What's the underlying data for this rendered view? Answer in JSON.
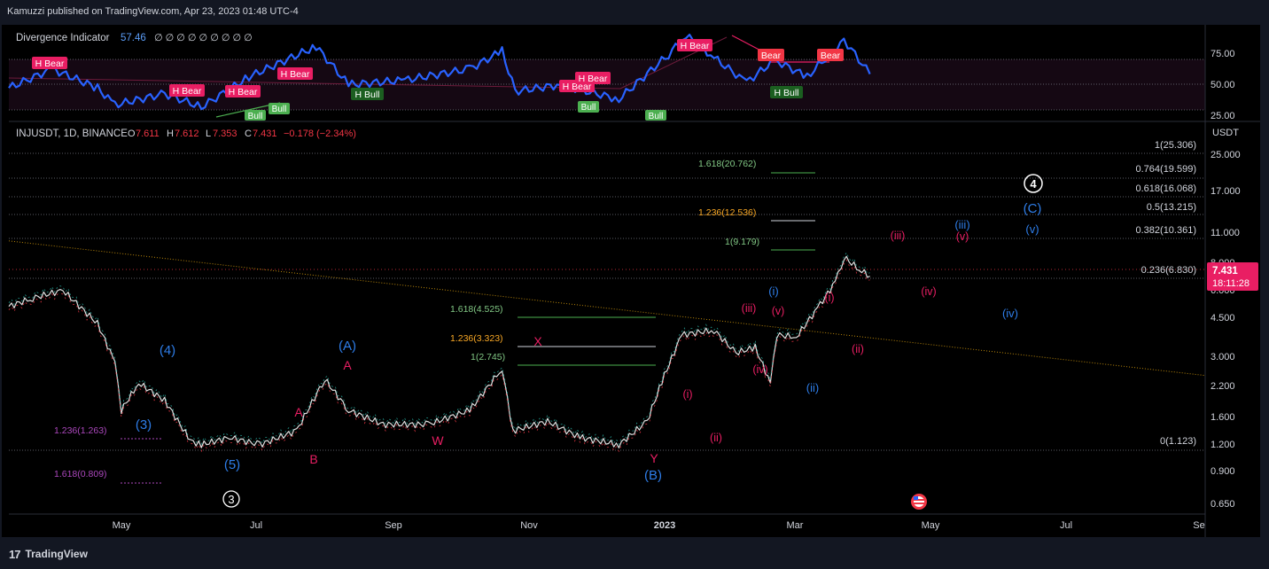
{
  "header": {
    "text": "Kamuzzi published on TradingView.com, Apr 23, 2023 01:48 UTC-4"
  },
  "footer": {
    "logo_glyph": "17",
    "brand": "TradingView"
  },
  "colors": {
    "background": "#000000",
    "page": "#131722",
    "price_line": "#f23645",
    "osc_line": "#2962ff",
    "bear_label": "#e91e63",
    "bull_label": "#2e7d32",
    "wave_blue": "#2962ff",
    "wave_red": "#e91e63",
    "fib_green": "#4caf50",
    "fib_gold": "#f9a825",
    "fib_purple": "#ab47bc"
  },
  "indicator": {
    "name": "Divergence Indicator",
    "value": "57.46",
    "placeholders": "∅ ∅ ∅ ∅ ∅ ∅ ∅ ∅ ∅",
    "axis_ticks": [
      "75.00",
      "50.00",
      "25.00"
    ],
    "labels": [
      "H Bear",
      "H Bear",
      "H Bear",
      "H Bear",
      "H Bear",
      "H Bear",
      "Bear",
      "Bear",
      "H Bull",
      "H Bull",
      "Bull",
      "Bull",
      "Bull",
      "Bull"
    ]
  },
  "symbol": {
    "line": "INJUSDT, 1D, BINANCE",
    "o_label": "O",
    "o": "7.611",
    "h_label": "H",
    "h": "7.612",
    "l_label": "L",
    "l": "7.353",
    "c_label": "C",
    "c": "7.431",
    "chg": "−0.178 (−2.34%)"
  },
  "price_axis": {
    "currency": "USDT",
    "ticks": [
      "25.000",
      "17.000",
      "11.000",
      "8.000",
      "6.000",
      "4.500",
      "3.000",
      "2.200",
      "1.600",
      "1.200",
      "0.900",
      "0.650"
    ],
    "last_price": "7.431",
    "countdown": "18:11:28"
  },
  "time_axis": {
    "ticks": [
      "May",
      "Jul",
      "Sep",
      "Nov",
      "2023",
      "Mar",
      "May",
      "Jul",
      "Se"
    ]
  },
  "fib_right": [
    "1(25.306)",
    "0.764(19.599)",
    "0.618(16.068)",
    "0.5(13.215)",
    "0.382(10.361)",
    "0.236(6.830)",
    "0(1.123)"
  ],
  "fib_ext_upper": [
    "1.618(20.762)",
    "1.236(12.536)",
    "1(9.179)"
  ],
  "fib_ext_mid": [
    "1.618(4.525)",
    "1.236(3.323)",
    "1(2.745)"
  ],
  "fib_ext_low": [
    "1.236(1.263)",
    "1.618(0.809)"
  ],
  "waves": {
    "blue": [
      "(4)",
      "(3)",
      "(5)",
      "(A)",
      "(B)",
      "(C)",
      "(i)",
      "(ii)",
      "(iii)",
      "(iv)",
      "(v)"
    ],
    "red": [
      "A",
      "B",
      "W",
      "X",
      "Y",
      "(i)",
      "(ii)",
      "(iii)",
      "(iv)",
      "(v)",
      "(i)",
      "(ii)",
      "(iii)",
      "(iv)",
      "(v)"
    ],
    "circled": [
      "3",
      "4"
    ]
  },
  "chart_data": {
    "type": "line",
    "symbol": "INJUSDT",
    "timeframe": "1D",
    "exchange": "BINANCE",
    "y_scale": "log",
    "ylim": [
      0.6,
      32
    ],
    "x_ticks": [
      "May",
      "Jul",
      "Sep",
      "Nov",
      "2023",
      "Mar",
      "May",
      "Jul",
      "Se"
    ],
    "x": [
      "2022-03-21",
      "2022-04-01",
      "2022-04-15",
      "2022-05-01",
      "2022-05-09",
      "2022-05-12",
      "2022-05-20",
      "2022-06-01",
      "2022-06-13",
      "2022-06-18",
      "2022-07-01",
      "2022-07-15",
      "2022-08-01",
      "2022-08-14",
      "2022-08-25",
      "2022-09-10",
      "2022-10-01",
      "2022-10-20",
      "2022-11-04",
      "2022-11-09",
      "2022-11-25",
      "2022-12-10",
      "2022-12-28",
      "2023-01-10",
      "2023-01-18",
      "2023-01-26",
      "2023-02-10",
      "2023-02-20",
      "2023-03-01",
      "2023-03-08",
      "2023-03-11",
      "2023-03-20",
      "2023-03-31",
      "2023-04-07",
      "2023-04-11",
      "2023-04-18",
      "2023-04-23"
    ],
    "series": [
      {
        "values": [
          5.4,
          5.9,
          6.4,
          4.5,
          3.0,
          1.8,
          2.4,
          2.0,
          1.3,
          1.25,
          1.35,
          1.25,
          1.45,
          2.5,
          1.8,
          1.55,
          1.55,
          1.8,
          2.8,
          1.45,
          1.6,
          1.35,
          1.25,
          1.6,
          2.6,
          4.0,
          4.2,
          3.3,
          3.5,
          2.4,
          4.0,
          3.9,
          5.5,
          7.0,
          9.1,
          8.0,
          7.431
        ]
      }
    ],
    "oscillator": {
      "name": "Divergence Indicator",
      "last": 57.46,
      "ylim": [
        20,
        95
      ],
      "x": [
        "2022-03-21",
        "2022-04-10",
        "2022-05-01",
        "2022-05-09",
        "2022-06-01",
        "2022-06-18",
        "2022-07-10",
        "2022-08-10",
        "2022-08-25",
        "2022-09-20",
        "2022-10-20",
        "2022-11-04",
        "2022-11-10",
        "2022-12-01",
        "2022-12-28",
        "2023-01-20",
        "2023-01-28",
        "2023-02-10",
        "2023-02-25",
        "2023-03-10",
        "2023-03-25",
        "2023-04-11",
        "2023-04-23"
      ],
      "values": [
        45,
        62,
        45,
        30,
        40,
        28,
        55,
        82,
        48,
        52,
        62,
        78,
        42,
        48,
        35,
        75,
        92,
        72,
        50,
        70,
        55,
        88,
        57.46
      ]
    },
    "trendline": {
      "start": [
        "2022-03-21",
        10.8
      ],
      "end": [
        "2023-09-25",
        2.6
      ]
    },
    "fib_retracement": [
      {
        "level": 1,
        "price": 25.306
      },
      {
        "level": 0.764,
        "price": 19.599
      },
      {
        "level": 0.618,
        "price": 16.068
      },
      {
        "level": 0.5,
        "price": 13.215
      },
      {
        "level": 0.382,
        "price": 10.361
      },
      {
        "level": 0.236,
        "price": 6.83
      },
      {
        "level": 0,
        "price": 1.123
      }
    ]
  }
}
